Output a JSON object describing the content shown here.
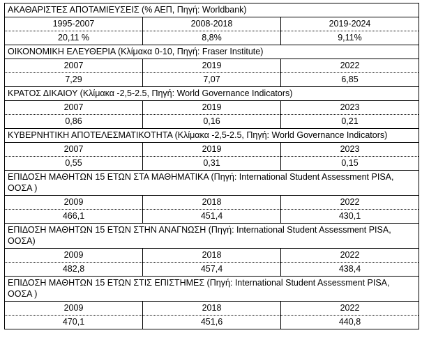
{
  "sections": [
    {
      "title": "ΑΚΑΘΑΡΙΣΤΕΣ ΑΠΟΤΑΜΙΕΥΣΕΙΣ (% ΑΕΠ, Πηγή: Worldbank)",
      "periods": [
        "1995-2007",
        "2008-2018",
        "2019-2024"
      ],
      "values": [
        "20,11 %",
        "8,8%",
        "9,11%"
      ]
    },
    {
      "title": "ΟΙΚΟΝΟΜΙΚΗ ΕΛΕΥΘΕΡΙΑ (Κλίμακα 0-10, Πηγή: Fraser Institute)",
      "periods": [
        "2007",
        "2019",
        "2022"
      ],
      "values": [
        "7,29",
        "7,07",
        "6,85"
      ]
    },
    {
      "title": "ΚΡΑΤΟΣ ΔΙΚΑΙΟΥ (Κλίμακα -2,5-2.5, Πηγή: World Governance Indicators)",
      "periods": [
        "2007",
        "2019",
        "2023"
      ],
      "values": [
        "0,86",
        "0,16",
        "0,21"
      ]
    },
    {
      "title": "ΚΥΒΕΡΝΗΤΙΚΗ ΑΠΟΤΕΛΕΣΜΑΤΙΚΟΤΗΤΑ (Κλίμακα -2,5-2.5, Πηγή: World Governance Indicators)",
      "periods": [
        "2007",
        "2019",
        "2023"
      ],
      "values": [
        "0,55",
        "0,31",
        "0,15"
      ]
    },
    {
      "title": "ΕΠΙΔΟΣΗ ΜΑΘΗΤΩΝ 15 ΕΤΩΝ ΣΤΑ ΜΑΘΗΜΑΤΙΚΑ (Πηγή: International Student Assessment PISA, ΟΟΣΑ )",
      "periods": [
        "2009",
        "2018",
        "2022"
      ],
      "values": [
        "466,1",
        "451,4",
        "430,1"
      ]
    },
    {
      "title": "ΕΠΙΔΟΣΗ ΜΑΘΗΤΩΝ 15 ΕΤΩΝ ΣΤΗΝ ΑΝΑΓΝΩΣΗ (Πηγή: International Student Assessment PISA, ΟΟΣΑ)",
      "periods": [
        "2009",
        "2018",
        "2022"
      ],
      "values": [
        "482,8",
        "457,4",
        "438,4"
      ]
    },
    {
      "title": "ΕΠΙΔΟΣΗ ΜΑΘΗΤΩΝ 15 ΕΤΩΝ ΣΤΙΣ ΕΠΙΣΤΗΜΕΣ (Πηγή: International Student Assessment PISA, ΟΟΣΑ )",
      "periods": [
        "2009",
        "2018",
        "2022"
      ],
      "values": [
        "470,1",
        "451,6",
        "440,8"
      ]
    }
  ]
}
